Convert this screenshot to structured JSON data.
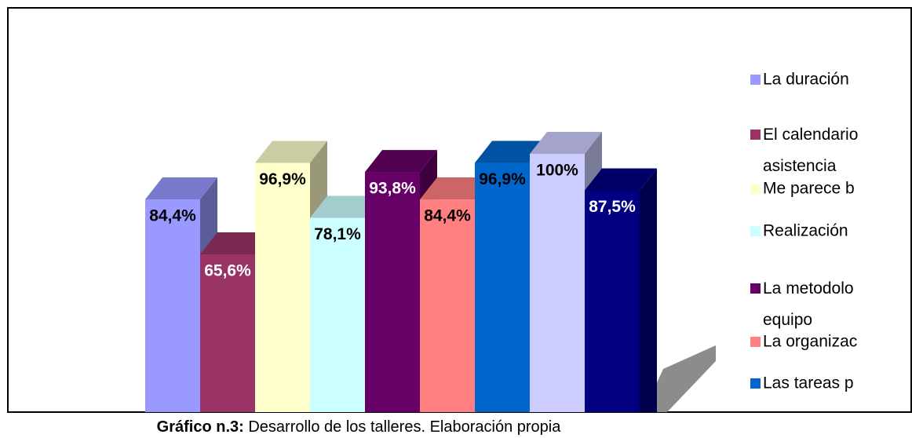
{
  "chart_data": {
    "type": "bar3d",
    "caption_bold": "Gráfico n.3:",
    "caption": " Desarrollo de los talleres. Elaboración propia",
    "categories": [
      "La duración",
      "El calendario\nasistencia",
      "Me parece b",
      "Realización",
      "La metodolo\nequipo",
      "La organizac",
      "Las tareas p",
      null,
      null
    ],
    "values": [
      84.4,
      65.6,
      96.9,
      78.1,
      93.8,
      84.4,
      96.9,
      100,
      87.5
    ],
    "value_labels": [
      "84,4%",
      "65,6%",
      "96,9%",
      "78,1%",
      "93,8%",
      "84,4%",
      "96,9%",
      "100%",
      "87,5%"
    ],
    "colors": [
      "#9999ff",
      "#993366",
      "#ffffcc",
      "#ccffff",
      "#660066",
      "#ff8080",
      "#0066cc",
      "#ccccff",
      "#000080"
    ]
  }
}
